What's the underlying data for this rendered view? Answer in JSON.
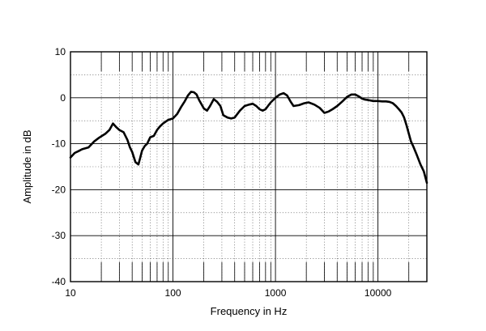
{
  "chart_data": {
    "type": "line",
    "title": "",
    "xlabel": "Frequency in Hz",
    "ylabel": "Amplitude in dB",
    "x_scale": "log",
    "xlim": [
      10,
      30000
    ],
    "ylim": [
      -40,
      10
    ],
    "grid": true,
    "x_tick_labels": [
      "10",
      "100",
      "1000",
      "10000"
    ],
    "y_tick_labels": [
      "10",
      "0",
      "-10",
      "-20",
      "-30",
      "-40"
    ],
    "x_ticks": [
      10,
      100,
      1000,
      10000
    ],
    "y_ticks": [
      10,
      0,
      -10,
      -20,
      -30,
      -40
    ],
    "series": [
      {
        "color": "#000000",
        "x": [
          10,
          11,
          12,
          13,
          15,
          17,
          19,
          22,
          24,
          26,
          28,
          30,
          33,
          36,
          38,
          40,
          43,
          46,
          48,
          50,
          53,
          56,
          60,
          65,
          70,
          75,
          80,
          90,
          100,
          110,
          120,
          130,
          140,
          150,
          160,
          170,
          180,
          200,
          215,
          230,
          250,
          270,
          290,
          310,
          340,
          370,
          400,
          450,
          500,
          550,
          600,
          650,
          700,
          750,
          800,
          850,
          900,
          1000,
          1100,
          1200,
          1300,
          1400,
          1500,
          1700,
          1900,
          2100,
          2400,
          2700,
          3000,
          3300,
          3600,
          4000,
          4500,
          5000,
          5500,
          6000,
          6500,
          7000,
          7500,
          8000,
          9000,
          10000,
          11000,
          12000,
          13000,
          14000,
          15000,
          16000,
          17000,
          18000,
          19000,
          20000,
          21000,
          22000,
          24000,
          26000,
          28000,
          30000
        ],
        "y": [
          -13.0,
          -12.0,
          -11.6,
          -11.2,
          -10.8,
          -9.5,
          -8.7,
          -7.8,
          -7.0,
          -5.6,
          -6.4,
          -7.0,
          -7.5,
          -9.2,
          -10.8,
          -11.8,
          -14.0,
          -14.5,
          -13.0,
          -11.5,
          -10.5,
          -10.0,
          -8.6,
          -8.3,
          -7.0,
          -6.2,
          -5.6,
          -4.8,
          -4.5,
          -3.5,
          -2.0,
          -0.8,
          0.5,
          1.3,
          1.2,
          0.7,
          -0.5,
          -2.3,
          -2.8,
          -1.8,
          -0.3,
          -0.9,
          -1.8,
          -3.8,
          -4.3,
          -4.5,
          -4.3,
          -2.8,
          -1.8,
          -1.5,
          -1.3,
          -1.8,
          -2.5,
          -2.8,
          -2.5,
          -1.7,
          -1.0,
          0.0,
          0.7,
          1.0,
          0.5,
          -0.8,
          -1.8,
          -1.6,
          -1.2,
          -1.0,
          -1.5,
          -2.2,
          -3.3,
          -3.0,
          -2.5,
          -1.8,
          -0.8,
          0.2,
          0.7,
          0.7,
          0.3,
          -0.2,
          -0.4,
          -0.5,
          -0.7,
          -0.7,
          -0.8,
          -0.8,
          -0.9,
          -1.2,
          -1.8,
          -2.5,
          -3.2,
          -4.3,
          -6.0,
          -7.8,
          -9.5,
          -10.5,
          -12.5,
          -14.5,
          -16.0,
          -18.5
        ]
      }
    ]
  }
}
